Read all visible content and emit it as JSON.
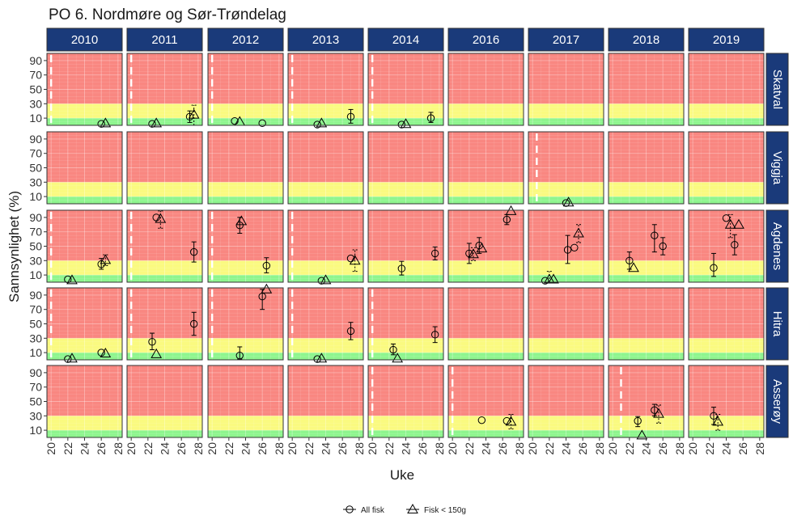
{
  "chart_data": {
    "type": "scatter",
    "title": "PO 6. Nordmøre og Sør-Trøndelag",
    "xlabel": "Uke",
    "ylabel": "Sannsynlighet  (%)",
    "xlim": [
      19.5,
      28.5
    ],
    "ylim": [
      0,
      100
    ],
    "x_ticks": [
      "20",
      "22",
      "24",
      "26",
      "28"
    ],
    "y_ticks": [
      "10",
      "30",
      "50",
      "70",
      "90"
    ],
    "zones": [
      {
        "from": 0,
        "to": 10,
        "color": "#8ef58e"
      },
      {
        "from": 10,
        "to": 30,
        "color": "#fafa80"
      },
      {
        "from": 30,
        "to": 100,
        "color": "#f98781"
      }
    ],
    "years": [
      "2010",
      "2011",
      "2012",
      "2013",
      "2014",
      "2016",
      "2017",
      "2018",
      "2019"
    ],
    "locations": [
      "Skatval",
      "Viggja",
      "Agdenes",
      "Hitra",
      "Asserøy"
    ],
    "legend": {
      "position": "bottom",
      "items": [
        {
          "label": "All fisk",
          "shape": "circle"
        },
        {
          "label": "Fisk < 150g",
          "shape": "triangle"
        }
      ]
    },
    "colors": {
      "strip": "#1a3a7a",
      "panel_border": "#333333",
      "dashed_line": "#ffffff"
    },
    "dashed_lines": [
      {
        "location": "Skatval",
        "year": "2010",
        "x": 20
      },
      {
        "location": "Skatval",
        "year": "2011",
        "x": 20
      },
      {
        "location": "Skatval",
        "year": "2012",
        "x": 20
      },
      {
        "location": "Skatval",
        "year": "2013",
        "x": 20
      },
      {
        "location": "Skatval",
        "year": "2014",
        "x": 20
      },
      {
        "location": "Viggja",
        "year": "2017",
        "x": 20.5
      },
      {
        "location": "Agdenes",
        "year": "2010",
        "x": 20
      },
      {
        "location": "Agdenes",
        "year": "2011",
        "x": 20
      },
      {
        "location": "Agdenes",
        "year": "2012",
        "x": 20
      },
      {
        "location": "Agdenes",
        "year": "2013",
        "x": 20
      },
      {
        "location": "Hitra",
        "year": "2010",
        "x": 20
      },
      {
        "location": "Hitra",
        "year": "2011",
        "x": 20
      },
      {
        "location": "Hitra",
        "year": "2012",
        "x": 20
      },
      {
        "location": "Hitra",
        "year": "2013",
        "x": 20
      },
      {
        "location": "Hitra",
        "year": "2014",
        "x": 20
      },
      {
        "location": "Asserøy",
        "year": "2014",
        "x": 20
      },
      {
        "location": "Asserøy",
        "year": "2016",
        "x": 20
      },
      {
        "location": "Asserøy",
        "year": "2018",
        "x": 21
      }
    ],
    "series": [
      {
        "name": "All fisk",
        "shape": "circle",
        "points": [
          {
            "location": "Skatval",
            "year": "2010",
            "x": 26,
            "y": 2
          },
          {
            "location": "Skatval",
            "year": "2011",
            "x": 22.5,
            "y": 2
          },
          {
            "location": "Skatval",
            "year": "2011",
            "x": 27,
            "y": 12,
            "ylo": 4,
            "yhi": 20
          },
          {
            "location": "Skatval",
            "year": "2012",
            "x": 22.7,
            "y": 6
          },
          {
            "location": "Skatval",
            "year": "2012",
            "x": 26,
            "y": 3
          },
          {
            "location": "Skatval",
            "year": "2013",
            "x": 23,
            "y": 1
          },
          {
            "location": "Skatval",
            "year": "2013",
            "x": 27,
            "y": 12,
            "ylo": 3,
            "yhi": 22
          },
          {
            "location": "Skatval",
            "year": "2014",
            "x": 23.5,
            "y": 1
          },
          {
            "location": "Skatval",
            "year": "2014",
            "x": 27,
            "y": 10,
            "ylo": 4,
            "yhi": 18
          },
          {
            "location": "Viggja",
            "year": "2017",
            "x": 24,
            "y": 1
          },
          {
            "location": "Agdenes",
            "year": "2010",
            "x": 22,
            "y": 4
          },
          {
            "location": "Agdenes",
            "year": "2010",
            "x": 26,
            "y": 25,
            "ylo": 18,
            "yhi": 33
          },
          {
            "location": "Agdenes",
            "year": "2011",
            "x": 23,
            "y": 90
          },
          {
            "location": "Agdenes",
            "year": "2011",
            "x": 27.5,
            "y": 42,
            "ylo": 28,
            "yhi": 56
          },
          {
            "location": "Agdenes",
            "year": "2012",
            "x": 23.3,
            "y": 79,
            "ylo": 68,
            "yhi": 90
          },
          {
            "location": "Agdenes",
            "year": "2012",
            "x": 26.5,
            "y": 23,
            "ylo": 13,
            "yhi": 34
          },
          {
            "location": "Agdenes",
            "year": "2013",
            "x": 23.5,
            "y": 2
          },
          {
            "location": "Agdenes",
            "year": "2013",
            "x": 27,
            "y": 33
          },
          {
            "location": "Agdenes",
            "year": "2014",
            "x": 23.5,
            "y": 19,
            "ylo": 10,
            "yhi": 29
          },
          {
            "location": "Agdenes",
            "year": "2014",
            "x": 27.5,
            "y": 40,
            "ylo": 31,
            "yhi": 49
          },
          {
            "location": "Agdenes",
            "year": "2016",
            "x": 22,
            "y": 40,
            "ylo": 26,
            "yhi": 54
          },
          {
            "location": "Agdenes",
            "year": "2016",
            "x": 23.2,
            "y": 51,
            "ylo": 40,
            "yhi": 62
          },
          {
            "location": "Agdenes",
            "year": "2016",
            "x": 26.5,
            "y": 87,
            "ylo": 80,
            "yhi": 94
          },
          {
            "location": "Agdenes",
            "year": "2017",
            "x": 21.5,
            "y": 2
          },
          {
            "location": "Agdenes",
            "year": "2017",
            "x": 24.2,
            "y": 45,
            "ylo": 26,
            "yhi": 65
          },
          {
            "location": "Agdenes",
            "year": "2017",
            "x": 25,
            "y": 48
          },
          {
            "location": "Agdenes",
            "year": "2018",
            "x": 22,
            "y": 30,
            "ylo": 18,
            "yhi": 42
          },
          {
            "location": "Agdenes",
            "year": "2018",
            "x": 25,
            "y": 65,
            "ylo": 42,
            "yhi": 80
          },
          {
            "location": "Agdenes",
            "year": "2018",
            "x": 26,
            "y": 50,
            "ylo": 38,
            "yhi": 62
          },
          {
            "location": "Agdenes",
            "year": "2019",
            "x": 22.5,
            "y": 20,
            "ylo": 8,
            "yhi": 40
          },
          {
            "location": "Agdenes",
            "year": "2019",
            "x": 24,
            "y": 89
          },
          {
            "location": "Agdenes",
            "year": "2019",
            "x": 25,
            "y": 52,
            "ylo": 38,
            "yhi": 66
          },
          {
            "location": "Hitra",
            "year": "2010",
            "x": 22,
            "y": 1
          },
          {
            "location": "Hitra",
            "year": "2010",
            "x": 26,
            "y": 10
          },
          {
            "location": "Hitra",
            "year": "2011",
            "x": 22.5,
            "y": 25,
            "ylo": 14,
            "yhi": 37
          },
          {
            "location": "Hitra",
            "year": "2011",
            "x": 27.5,
            "y": 50,
            "ylo": 34,
            "yhi": 66
          },
          {
            "location": "Hitra",
            "year": "2012",
            "x": 23.3,
            "y": 6,
            "ylo": 1,
            "yhi": 18
          },
          {
            "location": "Hitra",
            "year": "2012",
            "x": 26,
            "y": 88,
            "ylo": 70,
            "yhi": 98
          },
          {
            "location": "Hitra",
            "year": "2013",
            "x": 23,
            "y": 1
          },
          {
            "location": "Hitra",
            "year": "2013",
            "x": 27,
            "y": 40,
            "ylo": 28,
            "yhi": 52
          },
          {
            "location": "Hitra",
            "year": "2014",
            "x": 22.5,
            "y": 14,
            "ylo": 7,
            "yhi": 22
          },
          {
            "location": "Hitra",
            "year": "2014",
            "x": 27.5,
            "y": 35,
            "ylo": 24,
            "yhi": 46
          },
          {
            "location": "Asserøy",
            "year": "2016",
            "x": 23.5,
            "y": 24
          },
          {
            "location": "Asserøy",
            "year": "2016",
            "x": 26.5,
            "y": 23
          },
          {
            "location": "Asserøy",
            "year": "2018",
            "x": 23,
            "y": 23,
            "ylo": 15,
            "yhi": 29
          },
          {
            "location": "Asserøy",
            "year": "2018",
            "x": 25,
            "y": 38,
            "ylo": 30,
            "yhi": 46
          },
          {
            "location": "Asserøy",
            "year": "2019",
            "x": 22.5,
            "y": 30,
            "ylo": 18,
            "yhi": 42
          }
        ]
      },
      {
        "name": "Fisk < 150g",
        "shape": "triangle",
        "points": [
          {
            "location": "Skatval",
            "year": "2010",
            "x": 26.5,
            "y": 3
          },
          {
            "location": "Skatval",
            "year": "2011",
            "x": 23,
            "y": 3
          },
          {
            "location": "Skatval",
            "year": "2011",
            "x": 27.5,
            "y": 15,
            "ylo": 0,
            "yhi": 28
          },
          {
            "location": "Skatval",
            "year": "2012",
            "x": 23.3,
            "y": 5
          },
          {
            "location": "Skatval",
            "year": "2013",
            "x": 23.5,
            "y": 3
          },
          {
            "location": "Skatval",
            "year": "2014",
            "x": 24,
            "y": 2
          },
          {
            "location": "Viggja",
            "year": "2017",
            "x": 24.3,
            "y": 2
          },
          {
            "location": "Agdenes",
            "year": "2010",
            "x": 22.5,
            "y": 3
          },
          {
            "location": "Agdenes",
            "year": "2010",
            "x": 26.5,
            "y": 31,
            "ylo": 23,
            "yhi": 38
          },
          {
            "location": "Agdenes",
            "year": "2011",
            "x": 23.5,
            "y": 88,
            "ylo": 75,
            "yhi": 99
          },
          {
            "location": "Agdenes",
            "year": "2012",
            "x": 23.5,
            "y": 85
          },
          {
            "location": "Agdenes",
            "year": "2013",
            "x": 24,
            "y": 3
          },
          {
            "location": "Agdenes",
            "year": "2013",
            "x": 27.5,
            "y": 30,
            "ylo": 15,
            "yhi": 45
          },
          {
            "location": "Agdenes",
            "year": "2016",
            "x": 22.5,
            "y": 39,
            "ylo": 30,
            "yhi": 48
          },
          {
            "location": "Agdenes",
            "year": "2016",
            "x": 23.5,
            "y": 47
          },
          {
            "location": "Agdenes",
            "year": "2016",
            "x": 27,
            "y": 99
          },
          {
            "location": "Agdenes",
            "year": "2017",
            "x": 22,
            "y": 4,
            "ylo": 0,
            "yhi": 15
          },
          {
            "location": "Agdenes",
            "year": "2017",
            "x": 22.5,
            "y": 4
          },
          {
            "location": "Agdenes",
            "year": "2017",
            "x": 25.5,
            "y": 68,
            "ylo": 55,
            "yhi": 80
          },
          {
            "location": "Agdenes",
            "year": "2018",
            "x": 22.5,
            "y": 20
          },
          {
            "location": "Agdenes",
            "year": "2019",
            "x": 24.5,
            "y": 80,
            "ylo": 62,
            "yhi": 94
          },
          {
            "location": "Agdenes",
            "year": "2019",
            "x": 25.5,
            "y": 80
          },
          {
            "location": "Hitra",
            "year": "2010",
            "x": 22.5,
            "y": 2
          },
          {
            "location": "Hitra",
            "year": "2010",
            "x": 26.5,
            "y": 9
          },
          {
            "location": "Hitra",
            "year": "2011",
            "x": 23,
            "y": 8
          },
          {
            "location": "Hitra",
            "year": "2012",
            "x": 26.5,
            "y": 98
          },
          {
            "location": "Hitra",
            "year": "2013",
            "x": 23.5,
            "y": 2
          },
          {
            "location": "Hitra",
            "year": "2014",
            "x": 23,
            "y": 2
          },
          {
            "location": "Asserøy",
            "year": "2016",
            "x": 27,
            "y": 22,
            "ylo": 12,
            "yhi": 32
          },
          {
            "location": "Asserøy",
            "year": "2018",
            "x": 23.5,
            "y": 3
          },
          {
            "location": "Asserøy",
            "year": "2018",
            "x": 25.5,
            "y": 33,
            "ylo": 20,
            "yhi": 45
          },
          {
            "location": "Asserøy",
            "year": "2019",
            "x": 23,
            "y": 22,
            "ylo": 10,
            "yhi": 32
          }
        ]
      }
    ]
  }
}
